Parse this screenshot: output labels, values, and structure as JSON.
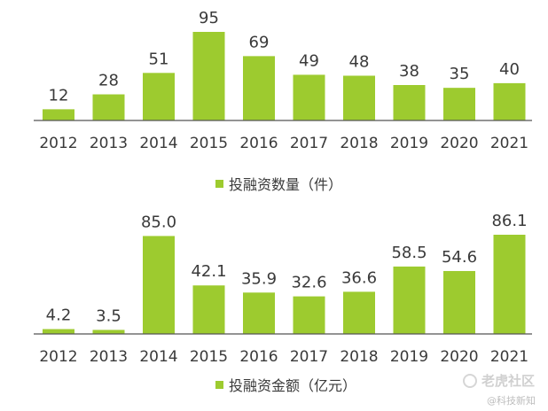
{
  "colors": {
    "bar": "#9dcb2f",
    "text": "#3a3a3a",
    "axis": "#555555"
  },
  "chart_data": [
    {
      "type": "bar",
      "categories": [
        "2012",
        "2013",
        "2014",
        "2015",
        "2016",
        "2017",
        "2018",
        "2019",
        "2020",
        "2021"
      ],
      "series": [
        {
          "name": "投融资数量（件）",
          "values": [
            12,
            28,
            51,
            95,
            69,
            49,
            48,
            38,
            35,
            40
          ]
        }
      ],
      "value_labels": [
        "12",
        "28",
        "51",
        "95",
        "69",
        "49",
        "48",
        "38",
        "35",
        "40"
      ],
      "legend": "bottom-center",
      "ylim": [
        0,
        95
      ],
      "grid": false
    },
    {
      "type": "bar",
      "categories": [
        "2012",
        "2013",
        "2014",
        "2015",
        "2016",
        "2017",
        "2018",
        "2019",
        "2020",
        "2021"
      ],
      "series": [
        {
          "name": "投融资金额（亿元）",
          "values": [
            4.2,
            3.5,
            85.0,
            42.1,
            35.9,
            32.6,
            36.6,
            58.5,
            54.6,
            86.1
          ]
        }
      ],
      "value_labels": [
        "4.2",
        "3.5",
        "85.0",
        "42.1",
        "35.9",
        "32.6",
        "36.6",
        "58.5",
        "54.6",
        "86.1"
      ],
      "legend": "bottom-center",
      "ylim": [
        0,
        86.1
      ],
      "grid": false
    }
  ],
  "watermark": {
    "main": "老虎社区",
    "sub": "@科技新知"
  }
}
